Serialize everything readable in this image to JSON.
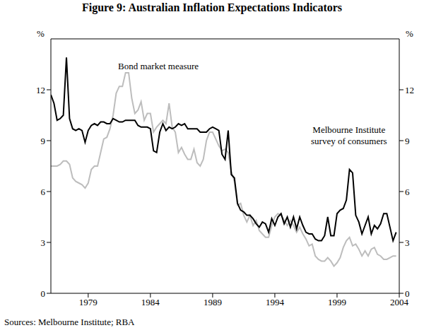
{
  "chart_data": {
    "type": "line",
    "title": "Figure 9: Australian Inflation Expectations Indicators",
    "source": "Sources: Melbourne Institute; RBA",
    "y_label": "%",
    "y2_label": "%",
    "x": [
      1976,
      1976.25,
      1976.5,
      1976.75,
      1977,
      1977.25,
      1977.5,
      1977.75,
      1978,
      1978.25,
      1978.5,
      1978.75,
      1979,
      1979.25,
      1979.5,
      1979.75,
      1980,
      1980.25,
      1980.5,
      1980.75,
      1981,
      1981.25,
      1981.5,
      1981.75,
      1982,
      1982.25,
      1982.5,
      1982.75,
      1983,
      1983.25,
      1983.5,
      1983.75,
      1984,
      1984.25,
      1984.5,
      1984.75,
      1985,
      1985.25,
      1985.5,
      1985.75,
      1986,
      1986.25,
      1986.5,
      1986.75,
      1987,
      1987.25,
      1987.5,
      1987.75,
      1988,
      1988.25,
      1988.5,
      1988.75,
      1989,
      1989.25,
      1989.5,
      1989.75,
      1990,
      1990.25,
      1990.5,
      1990.75,
      1991,
      1991.25,
      1991.5,
      1991.75,
      1992,
      1992.25,
      1992.5,
      1992.75,
      1993,
      1993.25,
      1993.5,
      1993.75,
      1994,
      1994.25,
      1994.5,
      1994.75,
      1995,
      1995.25,
      1995.5,
      1995.75,
      1996,
      1996.25,
      1996.5,
      1996.75,
      1997,
      1997.25,
      1997.5,
      1997.75,
      1998,
      1998.25,
      1998.5,
      1998.75,
      1999,
      1999.25,
      1999.5,
      1999.75,
      2000,
      2000.25,
      2000.5,
      2000.75,
      2001,
      2001.25,
      2001.5,
      2001.75,
      2002,
      2002.25,
      2002.5,
      2002.75,
      2003,
      2003.25,
      2003.5,
      2003.75
    ],
    "series": [
      {
        "name": "Bond market measure",
        "color": "#bdbdbd",
        "values": [
          7.5,
          7.5,
          7.5,
          7.6,
          7.8,
          7.8,
          7.6,
          6.8,
          6.6,
          6.5,
          6.4,
          6.2,
          6.5,
          7.3,
          7.5,
          7.5,
          8.3,
          9.1,
          9.2,
          9.7,
          10.5,
          11.8,
          12.2,
          12.2,
          13.0,
          13.0,
          11.5,
          10.6,
          10.8,
          11.3,
          10.2,
          10.6,
          10.6,
          9.5,
          9.8,
          10.0,
          10.2,
          10.0,
          11.2,
          9.8,
          9.5,
          8.3,
          8.6,
          8.2,
          7.9,
          7.9,
          8.5,
          7.7,
          7.5,
          7.9,
          9.0,
          9.5,
          9.5,
          9.1,
          8.7,
          8.4,
          8.5,
          8.3,
          7.2,
          6.6,
          5.2,
          5.3,
          4.6,
          4.2,
          4.6,
          4.0,
          4.3,
          3.7,
          3.5,
          3.3,
          3.3,
          4.0,
          4.5,
          4.7,
          4.6,
          4.3,
          4.0,
          4.3,
          4.0,
          3.6,
          3.9,
          3.5,
          3.2,
          2.8,
          2.9,
          2.2,
          2.0,
          1.9,
          1.9,
          2.1,
          1.9,
          1.6,
          1.8,
          2.1,
          2.7,
          3.1,
          3.3,
          2.8,
          2.9,
          2.6,
          2.2,
          2.5,
          2.2,
          2.6,
          2.7,
          2.3,
          2.2,
          2.0,
          2.0,
          2.1,
          2.2,
          2.2
        ]
      },
      {
        "name": "Melbourne Institute survey of consumers",
        "color": "#000000",
        "values": [
          11.7,
          11.2,
          10.2,
          10.3,
          10.5,
          13.9,
          10.3,
          9.7,
          9.6,
          9.7,
          9.6,
          8.9,
          9.6,
          9.9,
          10.0,
          9.9,
          10.1,
          10.1,
          10.0,
          10.0,
          10.3,
          10.2,
          10.1,
          10.1,
          10.2,
          10.2,
          10.2,
          10.2,
          9.9,
          9.8,
          9.8,
          9.8,
          9.7,
          8.4,
          8.3,
          9.5,
          10.0,
          9.6,
          9.8,
          9.7,
          9.8,
          10.0,
          9.9,
          10.0,
          9.7,
          9.7,
          9.7,
          9.7,
          9.5,
          9.5,
          9.5,
          9.7,
          9.8,
          9.7,
          9.6,
          8.2,
          7.9,
          9.6,
          7.0,
          6.8,
          5.3,
          4.9,
          4.8,
          4.6,
          4.6,
          4.4,
          4.1,
          3.9,
          4.2,
          4.1,
          3.6,
          4.4,
          4.0,
          4.5,
          4.7,
          4.1,
          4.5,
          3.9,
          4.5,
          3.8,
          4.5,
          4.0,
          3.6,
          3.5,
          3.5,
          3.2,
          3.1,
          3.1,
          3.4,
          4.5,
          3.4,
          3.4,
          4.7,
          4.9,
          5.0,
          5.5,
          7.3,
          7.1,
          4.6,
          4.2,
          3.5,
          4.0,
          4.5,
          3.5,
          4.0,
          3.8,
          4.1,
          4.7,
          4.7,
          3.9,
          3.1,
          3.6
        ]
      }
    ],
    "xlim": [
      1976,
      2004
    ],
    "xticks": [
      1979,
      1984,
      1989,
      1994,
      1999,
      2004
    ],
    "ylim": [
      0,
      15
    ],
    "yticks": [
      0,
      3,
      6,
      9,
      12
    ],
    "y2lim": [
      0,
      15
    ],
    "y2ticks": [
      0,
      3,
      6,
      9,
      12
    ],
    "grid": false
  }
}
